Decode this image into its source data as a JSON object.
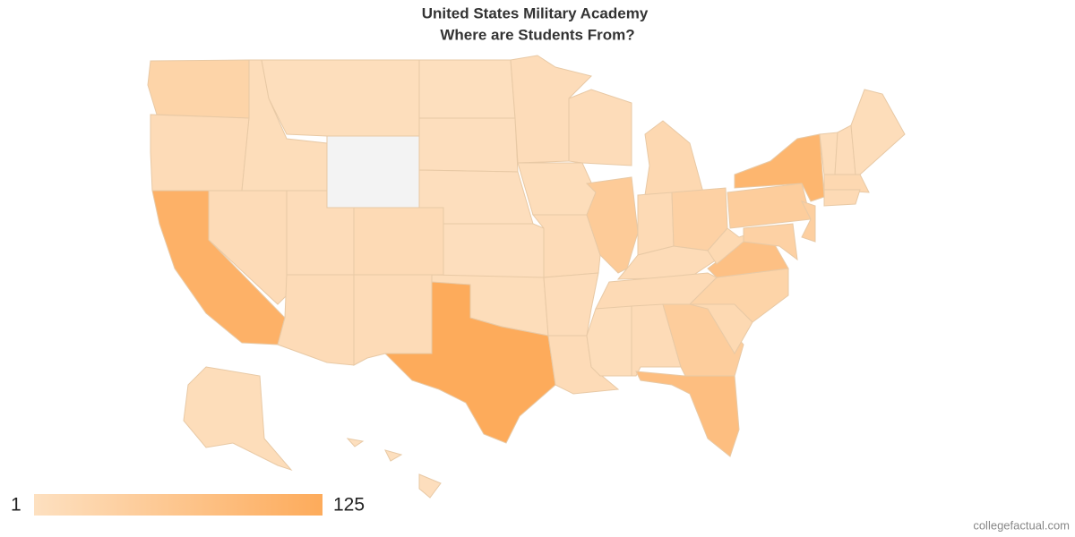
{
  "chart_data": {
    "type": "choropleth",
    "title": "United States Military Academy",
    "subtitle": "Where are Students From?",
    "values": [
      30,
      12,
      110,
      12,
      8,
      6,
      null,
      10,
      12,
      15,
      12,
      4,
      5,
      5,
      5,
      8,
      125,
      10,
      8,
      12,
      10,
      12,
      10,
      50,
      20,
      15,
      35,
      12,
      15,
      8,
      12,
      45,
      80,
      18,
      30,
      75,
      18,
      45,
      100,
      40,
      35,
      8,
      10,
      8,
      20,
      15,
      8,
      3,
      3,
      5
    ],
    "scale": {
      "min": 1,
      "max": 125,
      "colors": [
        "#fde0c0",
        "#fdab5b"
      ],
      "missing_color": "#f3f3f3"
    },
    "source": "collegefactual.com"
  }
}
